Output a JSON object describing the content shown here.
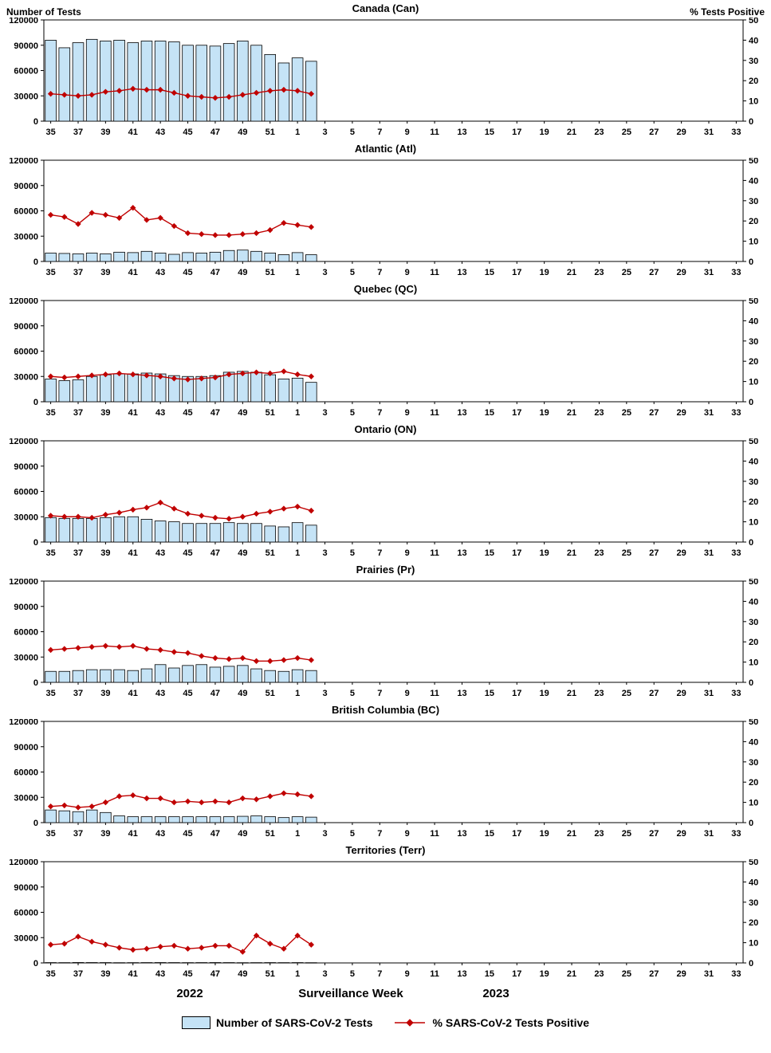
{
  "page": {
    "left_axis_title": "Number of Tests",
    "right_axis_title": "% Tests Positive",
    "year_left": "2022",
    "x_axis_title": "Surveillance Week",
    "year_right": "2023",
    "legend": {
      "bars_label": "Number of SARS-CoV-2 Tests",
      "line_label": "% SARS-CoV-2 Tests Positive"
    }
  },
  "colors": {
    "bar_fill": "#C5E3F6",
    "bar_stroke": "#000000",
    "line": "#C00000",
    "axis": "#000000"
  },
  "axes": {
    "left_ticks": [
      0,
      30000,
      60000,
      90000,
      120000
    ],
    "left_max": 120000,
    "right_ticks": [
      0,
      10,
      20,
      30,
      40,
      50
    ],
    "right_max": 50,
    "week_start": 35,
    "week_end": 33,
    "x_tick_labels": [
      "35",
      "37",
      "39",
      "41",
      "43",
      "45",
      "47",
      "49",
      "51",
      "1",
      "3",
      "5",
      "7",
      "9",
      "11",
      "13",
      "15",
      "17",
      "19",
      "21",
      "23",
      "25",
      "27",
      "29",
      "31",
      "33"
    ]
  },
  "chart_data": [
    {
      "type": "bar",
      "title": "Canada (Can)",
      "categories": [
        "35",
        "36",
        "37",
        "38",
        "39",
        "40",
        "41",
        "42",
        "43",
        "44",
        "45",
        "46",
        "47",
        "48",
        "49",
        "50",
        "51",
        "52",
        "1",
        "2"
      ],
      "series": [
        {
          "name": "Number of SARS-CoV-2 Tests",
          "type": "bar",
          "axis": "left",
          "values": [
            96000,
            87000,
            93000,
            97000,
            95000,
            96000,
            93000,
            95000,
            95000,
            94000,
            90000,
            90000,
            89000,
            92000,
            95000,
            90000,
            79000,
            69000,
            75000,
            71000
          ]
        },
        {
          "name": "% SARS-CoV-2 Tests Positive",
          "type": "line",
          "axis": "right",
          "values": [
            13.5,
            13,
            12.5,
            13,
            14.5,
            15,
            16,
            15.5,
            15.5,
            14,
            12.5,
            12,
            11.5,
            12,
            13,
            14,
            15,
            15.5,
            15,
            13.5
          ]
        }
      ],
      "ylim_left": [
        0,
        120000
      ],
      "ylim_right": [
        0,
        50
      ]
    },
    {
      "type": "bar",
      "title": "Atlantic (Atl)",
      "categories": [
        "35",
        "36",
        "37",
        "38",
        "39",
        "40",
        "41",
        "42",
        "43",
        "44",
        "45",
        "46",
        "47",
        "48",
        "49",
        "50",
        "51",
        "52",
        "1",
        "2"
      ],
      "series": [
        {
          "name": "Number of SARS-CoV-2 Tests",
          "type": "bar",
          "axis": "left",
          "values": [
            10000,
            9500,
            9000,
            10000,
            9000,
            11000,
            10500,
            12000,
            10000,
            8500,
            10500,
            10000,
            11000,
            13000,
            13500,
            12000,
            10000,
            8000,
            10500,
            8000
          ]
        },
        {
          "name": "% SARS-CoV-2 Tests Positive",
          "type": "line",
          "axis": "right",
          "values": [
            23,
            22,
            18.5,
            24,
            23,
            21.5,
            26.5,
            20.5,
            21.5,
            17.5,
            14,
            13.5,
            13,
            13,
            13.5,
            14,
            15.5,
            19,
            18,
            17
          ]
        }
      ],
      "ylim_left": [
        0,
        120000
      ],
      "ylim_right": [
        0,
        50
      ]
    },
    {
      "type": "bar",
      "title": "Quebec (QC)",
      "categories": [
        "35",
        "36",
        "37",
        "38",
        "39",
        "40",
        "41",
        "42",
        "43",
        "44",
        "45",
        "46",
        "47",
        "48",
        "49",
        "50",
        "51",
        "52",
        "1",
        "2"
      ],
      "series": [
        {
          "name": "Number of SARS-CoV-2 Tests",
          "type": "bar",
          "axis": "left",
          "values": [
            27000,
            25000,
            26000,
            30000,
            32000,
            33000,
            33000,
            34000,
            33000,
            31000,
            30000,
            30000,
            31000,
            35000,
            36000,
            35000,
            32000,
            27000,
            28000,
            23000
          ]
        },
        {
          "name": "% SARS-CoV-2 Tests Positive",
          "type": "line",
          "axis": "right",
          "values": [
            12.5,
            12,
            12.5,
            13,
            13.5,
            14,
            13.5,
            13,
            12.5,
            11.5,
            11,
            11.5,
            12,
            13.5,
            14,
            14.5,
            14,
            15,
            13.5,
            12.5
          ]
        }
      ],
      "ylim_left": [
        0,
        120000
      ],
      "ylim_right": [
        0,
        50
      ]
    },
    {
      "type": "bar",
      "title": "Ontario (ON)",
      "categories": [
        "35",
        "36",
        "37",
        "38",
        "39",
        "40",
        "41",
        "42",
        "43",
        "44",
        "45",
        "46",
        "47",
        "48",
        "49",
        "50",
        "51",
        "52",
        "1",
        "2"
      ],
      "series": [
        {
          "name": "Number of SARS-CoV-2 Tests",
          "type": "bar",
          "axis": "left",
          "values": [
            29000,
            28000,
            28000,
            28000,
            29000,
            30000,
            30000,
            27000,
            25000,
            24000,
            22000,
            22000,
            22000,
            23000,
            22000,
            22000,
            19000,
            18000,
            23000,
            20000
          ]
        },
        {
          "name": "% SARS-CoV-2 Tests Positive",
          "type": "line",
          "axis": "right",
          "values": [
            13,
            12.5,
            12.5,
            12,
            13.5,
            14.5,
            16,
            17,
            19.5,
            16.5,
            14,
            13,
            12,
            11.5,
            12.5,
            14,
            15,
            16.5,
            17.5,
            15.5
          ]
        }
      ],
      "ylim_left": [
        0,
        120000
      ],
      "ylim_right": [
        0,
        50
      ]
    },
    {
      "type": "bar",
      "title": "Prairies (Pr)",
      "categories": [
        "35",
        "36",
        "37",
        "38",
        "39",
        "40",
        "41",
        "42",
        "43",
        "44",
        "45",
        "46",
        "47",
        "48",
        "49",
        "50",
        "51",
        "52",
        "1",
        "2"
      ],
      "series": [
        {
          "name": "Number of SARS-CoV-2 Tests",
          "type": "bar",
          "axis": "left",
          "values": [
            13000,
            13000,
            14000,
            15000,
            15000,
            15000,
            14000,
            16000,
            21000,
            17000,
            20000,
            21000,
            18000,
            19000,
            20000,
            16000,
            14000,
            13000,
            15000,
            14000
          ]
        },
        {
          "name": "% SARS-CoV-2 Tests Positive",
          "type": "line",
          "axis": "right",
          "values": [
            16,
            16.5,
            17,
            17.5,
            18,
            17.5,
            18,
            16.5,
            16,
            15,
            14.5,
            13,
            12,
            11.5,
            12,
            10.5,
            10.5,
            11,
            12,
            11
          ]
        }
      ],
      "ylim_left": [
        0,
        120000
      ],
      "ylim_right": [
        0,
        50
      ]
    },
    {
      "type": "bar",
      "title": "British Columbia (BC)",
      "categories": [
        "35",
        "36",
        "37",
        "38",
        "39",
        "40",
        "41",
        "42",
        "43",
        "44",
        "45",
        "46",
        "47",
        "48",
        "49",
        "50",
        "51",
        "52",
        "1",
        "2"
      ],
      "series": [
        {
          "name": "Number of SARS-CoV-2 Tests",
          "type": "bar",
          "axis": "left",
          "values": [
            15000,
            14000,
            13000,
            15000,
            12000,
            8000,
            7000,
            7000,
            7000,
            7000,
            7000,
            7000,
            7000,
            7000,
            7500,
            8000,
            7000,
            6000,
            7000,
            6500
          ]
        },
        {
          "name": "% SARS-CoV-2 Tests Positive",
          "type": "line",
          "axis": "right",
          "values": [
            8,
            8.5,
            7.5,
            8,
            10,
            13,
            13.5,
            12,
            12,
            10,
            10.5,
            10,
            10.5,
            10,
            12,
            11.5,
            13,
            14.5,
            14,
            13
          ]
        }
      ],
      "ylim_left": [
        0,
        120000
      ],
      "ylim_right": [
        0,
        50
      ]
    },
    {
      "type": "bar",
      "title": "Territories (Terr)",
      "categories": [
        "35",
        "36",
        "37",
        "38",
        "39",
        "40",
        "41",
        "42",
        "43",
        "44",
        "45",
        "46",
        "47",
        "48",
        "49",
        "50",
        "51",
        "52",
        "1",
        "2"
      ],
      "series": [
        {
          "name": "Number of SARS-CoV-2 Tests",
          "type": "bar",
          "axis": "left",
          "values": [
            400,
            350,
            500,
            450,
            400,
            300,
            350,
            400,
            450,
            400,
            350,
            400,
            450,
            400,
            300,
            350,
            400,
            350,
            400,
            300
          ]
        },
        {
          "name": "% SARS-CoV-2 Tests Positive",
          "type": "line",
          "axis": "right",
          "values": [
            9,
            9.5,
            13,
            10.5,
            9,
            7.5,
            6.5,
            7,
            8,
            8.5,
            7,
            7.5,
            8.5,
            8.5,
            5.5,
            13.5,
            9.5,
            7,
            13.5,
            9
          ]
        }
      ],
      "ylim_left": [
        0,
        120000
      ],
      "ylim_right": [
        0,
        50
      ]
    }
  ]
}
